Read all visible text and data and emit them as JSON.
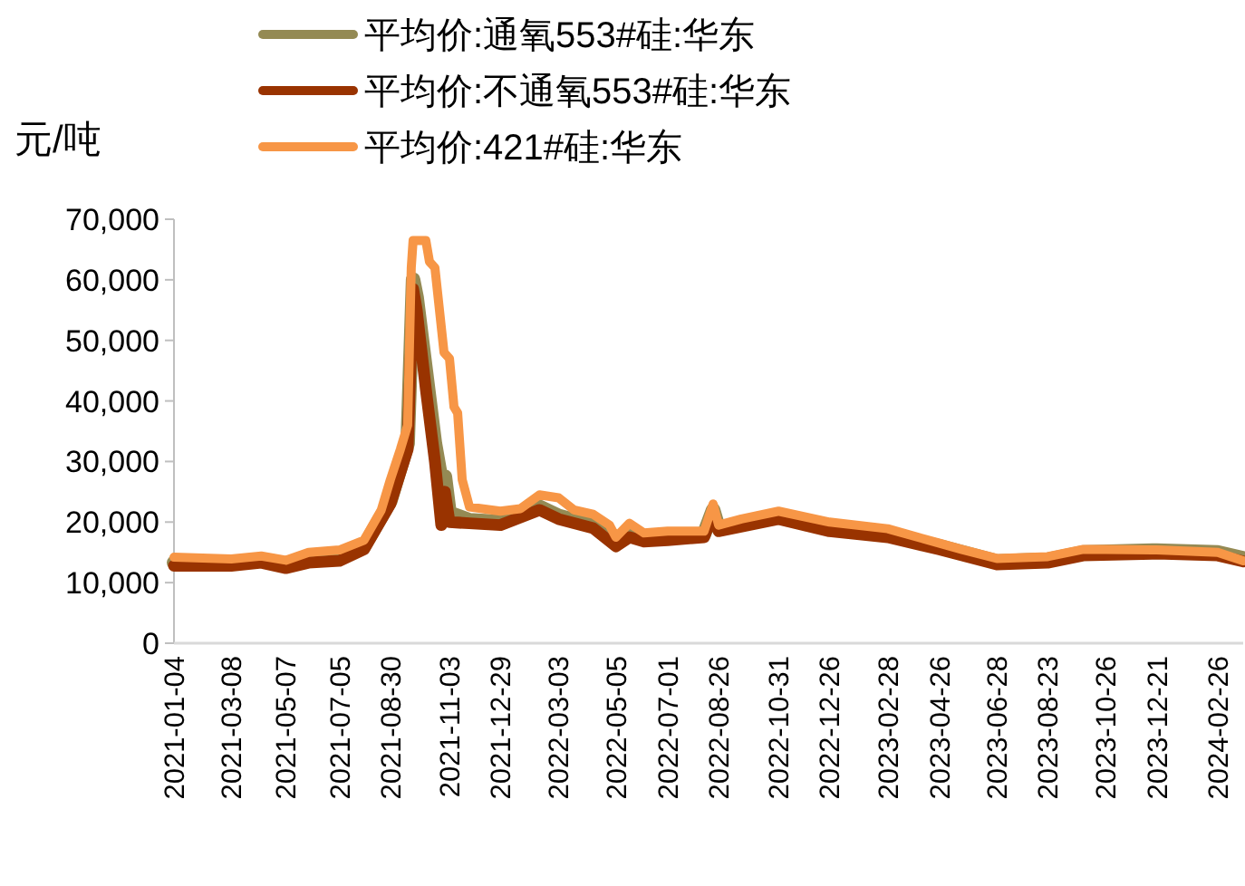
{
  "chart_data": {
    "type": "line",
    "ylabel": "元/吨",
    "legend": "top",
    "grid": false,
    "marker": "none",
    "line_style": "solid",
    "xlim": [
      "2021-01-04",
      "2024-03-25"
    ],
    "xticks": [
      "2021-01-04",
      "2021-03-08",
      "2021-05-07",
      "2021-07-05",
      "2021-08-30",
      "2021-11-03",
      "2021-12-29",
      "2022-03-03",
      "2022-05-05",
      "2022-07-01",
      "2022-08-26",
      "2022-10-31",
      "2022-12-26",
      "2023-02-28",
      "2023-04-26",
      "2023-06-28",
      "2023-08-23",
      "2023-10-26",
      "2023-12-21",
      "2024-02-26"
    ],
    "ylim": [
      0,
      70000
    ],
    "yticks": [
      {
        "value": 0,
        "label": "0"
      },
      {
        "value": 10000,
        "label": "10,000"
      },
      {
        "value": 20000,
        "label": "20,000"
      },
      {
        "value": 30000,
        "label": "30,000"
      },
      {
        "value": 40000,
        "label": "40,000"
      },
      {
        "value": 50000,
        "label": "50,000"
      },
      {
        "value": 60000,
        "label": "60,000"
      },
      {
        "value": 70000,
        "label": "70,000"
      }
    ],
    "series": [
      {
        "name": "平均价:通氧553#硅:华东",
        "color": "#948a54",
        "x": [
          "2021-01-04",
          "2021-03-08",
          "2021-04-10",
          "2021-05-07",
          "2021-06-01",
          "2021-07-05",
          "2021-08-01",
          "2021-08-30",
          "2021-09-18",
          "2021-09-24",
          "2021-09-28",
          "2021-10-08",
          "2021-10-18",
          "2021-10-25",
          "2021-10-29",
          "2021-11-03",
          "2021-11-25",
          "2021-12-29",
          "2022-02-10",
          "2022-03-03",
          "2022-04-10",
          "2022-05-05",
          "2022-05-20",
          "2022-06-05",
          "2022-07-01",
          "2022-08-10",
          "2022-08-20",
          "2022-08-26",
          "2022-10-31",
          "2022-12-26",
          "2023-02-28",
          "2023-04-26",
          "2023-06-28",
          "2023-08-23",
          "2023-10-01",
          "2023-12-21",
          "2024-02-26",
          "2024-03-25"
        ],
        "values": [
          13300,
          13300,
          13800,
          12900,
          13800,
          14100,
          16000,
          23500,
          33000,
          60000,
          57000,
          45000,
          33000,
          27000,
          27500,
          21500,
          20300,
          20000,
          22500,
          21000,
          19500,
          16500,
          18000,
          17300,
          17500,
          18000,
          22000,
          19000,
          21000,
          19000,
          18000,
          16000,
          13500,
          13800,
          15000,
          15300,
          15000,
          14000
        ]
      },
      {
        "name": "平均价:不通氧553#硅:华东",
        "color": "#993300",
        "x": [
          "2021-01-04",
          "2021-03-08",
          "2021-04-10",
          "2021-05-07",
          "2021-06-01",
          "2021-07-05",
          "2021-08-01",
          "2021-08-30",
          "2021-09-18",
          "2021-09-24",
          "2021-09-28",
          "2021-10-08",
          "2021-10-18",
          "2021-10-25",
          "2021-10-29",
          "2021-11-03",
          "2021-11-25",
          "2021-12-29",
          "2022-02-10",
          "2022-03-03",
          "2022-04-10",
          "2022-05-05",
          "2022-05-20",
          "2022-06-05",
          "2022-07-01",
          "2022-08-10",
          "2022-08-20",
          "2022-08-26",
          "2022-10-31",
          "2022-12-26",
          "2023-02-28",
          "2023-04-26",
          "2023-06-28",
          "2023-08-23",
          "2023-10-01",
          "2023-12-21",
          "2024-02-26",
          "2024-03-25"
        ],
        "values": [
          12800,
          12800,
          13300,
          12400,
          13300,
          13600,
          15500,
          23000,
          32000,
          58500,
          55000,
          42000,
          30000,
          19500,
          25000,
          20000,
          19800,
          19500,
          22000,
          20500,
          19000,
          16000,
          17500,
          16800,
          17000,
          17500,
          21500,
          18500,
          20500,
          18500,
          17500,
          15500,
          13000,
          13300,
          14500,
          14800,
          14500,
          13500
        ]
      },
      {
        "name": "平均价:421#硅:华东",
        "color": "#f79646",
        "x": [
          "2021-01-04",
          "2021-03-08",
          "2021-04-10",
          "2021-05-07",
          "2021-06-01",
          "2021-07-05",
          "2021-08-01",
          "2021-08-20",
          "2021-08-30",
          "2021-09-10",
          "2021-09-18",
          "2021-09-22",
          "2021-09-24",
          "2021-10-08",
          "2021-10-12",
          "2021-10-18",
          "2021-10-28",
          "2021-11-03",
          "2021-11-08",
          "2021-11-12",
          "2021-11-17",
          "2021-11-25",
          "2021-12-29",
          "2022-01-20",
          "2022-02-10",
          "2022-03-03",
          "2022-03-20",
          "2022-04-10",
          "2022-04-28",
          "2022-05-05",
          "2022-05-20",
          "2022-06-05",
          "2022-07-01",
          "2022-08-10",
          "2022-08-20",
          "2022-08-26",
          "2022-09-20",
          "2022-10-31",
          "2022-12-26",
          "2023-02-28",
          "2023-04-26",
          "2023-05-20",
          "2023-06-28",
          "2023-08-23",
          "2023-10-01",
          "2023-10-26",
          "2023-12-21",
          "2024-02-26",
          "2024-03-25"
        ],
        "values": [
          14200,
          13900,
          14400,
          13700,
          15000,
          15400,
          17000,
          22000,
          27000,
          32000,
          36000,
          62000,
          66500,
          66500,
          63000,
          62000,
          48000,
          47000,
          39000,
          38000,
          27000,
          22500,
          21800,
          22200,
          24500,
          24000,
          22000,
          21300,
          19500,
          17500,
          19800,
          18200,
          18500,
          18500,
          23000,
          19500,
          20500,
          21800,
          20000,
          18900,
          16500,
          15500,
          14000,
          14300,
          15500,
          15500,
          15400,
          15000,
          13600
        ]
      }
    ]
  }
}
